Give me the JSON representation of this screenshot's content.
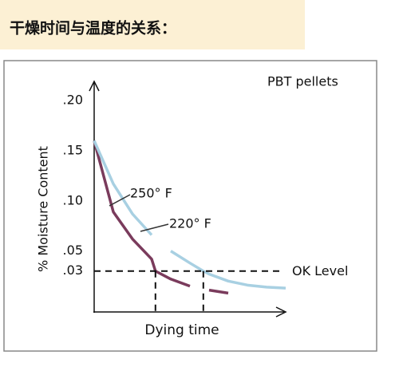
{
  "chart_data": {
    "type": "line",
    "title": "干燥时间与温度的关系：",
    "annotation": "PBT pellets",
    "ylabel": "% Moisture Content",
    "xlabel": "Dying time",
    "x": [
      0,
      1,
      2,
      3,
      3.2,
      4,
      5,
      5.7,
      6,
      7,
      8,
      9,
      10
    ],
    "series": [
      {
        "name": "250° F",
        "color": "#7a3b5c",
        "values": [
          0.16,
          0.089,
          0.062,
          0.042,
          0.03,
          0.022,
          0.015,
          null,
          0.011,
          0.008,
          null,
          null,
          null
        ]
      },
      {
        "name": "220° F",
        "color": "#a8d0e2",
        "values": [
          0.16,
          0.117,
          0.087,
          0.066,
          null,
          0.05,
          0.038,
          0.03,
          0.027,
          0.02,
          0.016,
          0.014,
          0.013
        ]
      }
    ],
    "reference_line": {
      "label": "OK Level",
      "value": 0.03,
      "crossings_x": [
        3.2,
        5.7
      ]
    },
    "xlim": [
      0,
      10
    ],
    "ylim": [
      -0.01,
      0.22
    ],
    "yticks": [
      {
        "value": 0.2,
        "label": ".20"
      },
      {
        "value": 0.15,
        "label": ".15"
      },
      {
        "value": 0.1,
        "label": ".10"
      },
      {
        "value": 0.05,
        "label": ".05"
      },
      {
        "value": 0.03,
        "label": ".03"
      }
    ]
  }
}
